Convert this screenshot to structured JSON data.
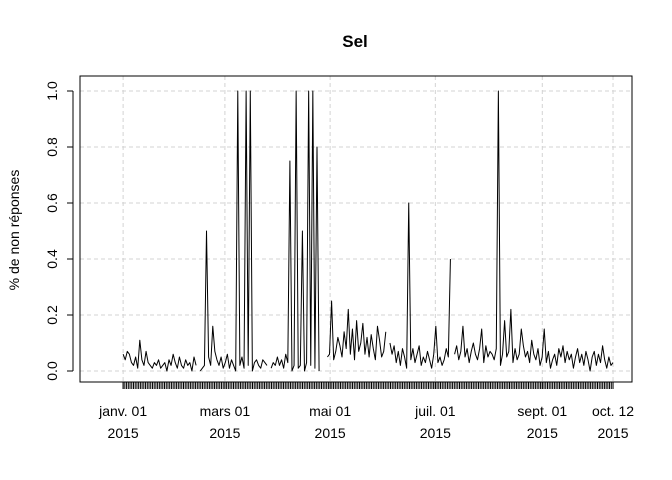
{
  "chart_data": {
    "type": "line",
    "title": "Sel",
    "xlabel": "",
    "ylabel": "% de non réponses",
    "x_start": "2015-01-01",
    "x_end": "2015-10-12",
    "xlim": [
      "2014-12-07",
      "2015-10-23"
    ],
    "ylim": [
      0,
      1
    ],
    "y_ticks": [
      "0.0",
      "0.2",
      "0.4",
      "0.6",
      "0.8",
      "1.0"
    ],
    "x_ticks": [
      {
        "date": "2015-01-01",
        "line1": "janv. 01",
        "line2": "2015"
      },
      {
        "date": "2015-03-01",
        "line1": "mars 01",
        "line2": "2015"
      },
      {
        "date": "2015-05-01",
        "line1": "mai 01",
        "line2": "2015"
      },
      {
        "date": "2015-07-01",
        "line1": "juil. 01",
        "line2": "2015"
      },
      {
        "date": "2015-09-01",
        "line1": "sept. 01",
        "line2": "2015"
      },
      {
        "date": "2015-10-12",
        "line1": "oct. 12",
        "line2": "2015"
      }
    ],
    "grid": true,
    "series": [
      {
        "values": [
          0.06,
          0.04,
          0.07,
          0.06,
          0.03,
          0.02,
          0.05,
          0.01,
          0.11,
          0.04,
          0.02,
          0.07,
          0.03,
          0.02,
          0.01,
          0.03,
          0.02,
          0.04,
          0.01,
          0.02,
          0.03,
          0.0,
          0.04,
          0.02,
          0.06,
          0.03,
          0.01,
          0.05,
          0.02,
          0.01,
          0.04,
          0.02,
          0.03,
          0.0,
          0.05,
          0.02,
          null,
          0.0,
          0.01,
          0.02,
          0.5,
          0.05,
          0.02,
          0.16,
          0.07,
          0.04,
          0.02,
          0.05,
          0.01,
          0.03,
          0.06,
          0.01,
          0.04,
          0.02,
          0.0,
          1.0,
          0.02,
          0.05,
          0.01,
          1.0,
          0.02,
          1.0,
          0.0,
          0.03,
          0.04,
          0.02,
          0.01,
          0.04,
          0.03,
          0.02,
          null,
          0.01,
          0.03,
          0.02,
          0.05,
          0.02,
          0.04,
          0.01,
          0.06,
          0.03,
          0.75,
          0.0,
          0.02,
          1.0,
          0.01,
          0.02,
          0.5,
          0.0,
          0.03,
          1.0,
          0.02,
          1.0,
          0.01,
          0.8,
          0.0,
          null,
          0.33,
          null,
          0.05,
          0.06,
          0.25,
          0.04,
          0.07,
          0.12,
          0.09,
          0.05,
          0.14,
          0.08,
          0.22,
          0.06,
          0.15,
          0.04,
          0.18,
          0.07,
          0.1,
          0.17,
          0.06,
          0.12,
          0.05,
          0.13,
          0.08,
          0.04,
          0.16,
          0.11,
          0.05,
          0.07,
          0.14,
          null,
          0.1,
          0.06,
          0.09,
          0.03,
          0.07,
          0.02,
          0.08,
          0.05,
          0.01,
          0.6,
          0.04,
          0.08,
          0.03,
          0.06,
          0.09,
          0.02,
          0.05,
          0.03,
          0.07,
          0.04,
          0.01,
          0.06,
          0.16,
          0.03,
          0.05,
          0.02,
          0.04,
          0.08,
          0.05,
          0.4,
          null,
          0.06,
          0.09,
          0.04,
          0.07,
          0.16,
          0.05,
          0.08,
          0.03,
          0.07,
          0.1,
          0.06,
          0.04,
          0.08,
          0.15,
          0.03,
          0.09,
          0.05,
          0.07,
          0.06,
          0.04,
          0.08,
          1.0,
          0.02,
          0.06,
          0.18,
          0.05,
          0.07,
          0.22,
          0.03,
          0.08,
          0.04,
          0.06,
          0.15,
          0.09,
          0.05,
          0.07,
          0.03,
          0.11,
          0.06,
          0.04,
          0.08,
          0.02,
          0.05,
          0.15,
          0.03,
          0.07,
          0.01,
          0.04,
          0.06,
          0.02,
          0.08,
          0.05,
          0.09,
          0.03,
          0.07,
          0.04,
          0.06,
          0.01,
          0.05,
          0.08,
          0.03,
          0.06,
          0.02,
          0.07,
          0.04,
          0.0,
          0.05,
          0.07,
          0.02,
          0.06,
          0.03,
          0.09,
          0.04,
          0.01,
          0.05,
          0.02,
          0.03
        ]
      }
    ]
  }
}
